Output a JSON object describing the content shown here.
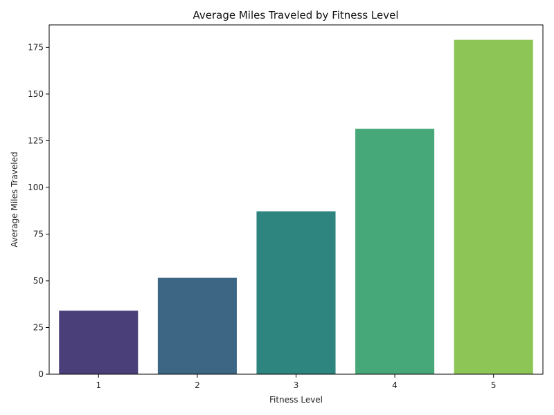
{
  "chart_data": {
    "type": "bar",
    "title": "Average Miles Traveled by Fitness Level",
    "xlabel": "Fitness Level",
    "ylabel": "Average Miles Traveled",
    "categories": [
      "1",
      "2",
      "3",
      "4",
      "5"
    ],
    "values": [
      34,
      51.6,
      87.2,
      131.4,
      179
    ],
    "colors": [
      "#4b3f7a",
      "#3d6685",
      "#2e847f",
      "#46a878",
      "#8dc556"
    ],
    "ylim": [
      0,
      187
    ],
    "yticks": [
      0,
      25,
      50,
      75,
      100,
      125,
      150,
      175
    ],
    "grid": false
  }
}
